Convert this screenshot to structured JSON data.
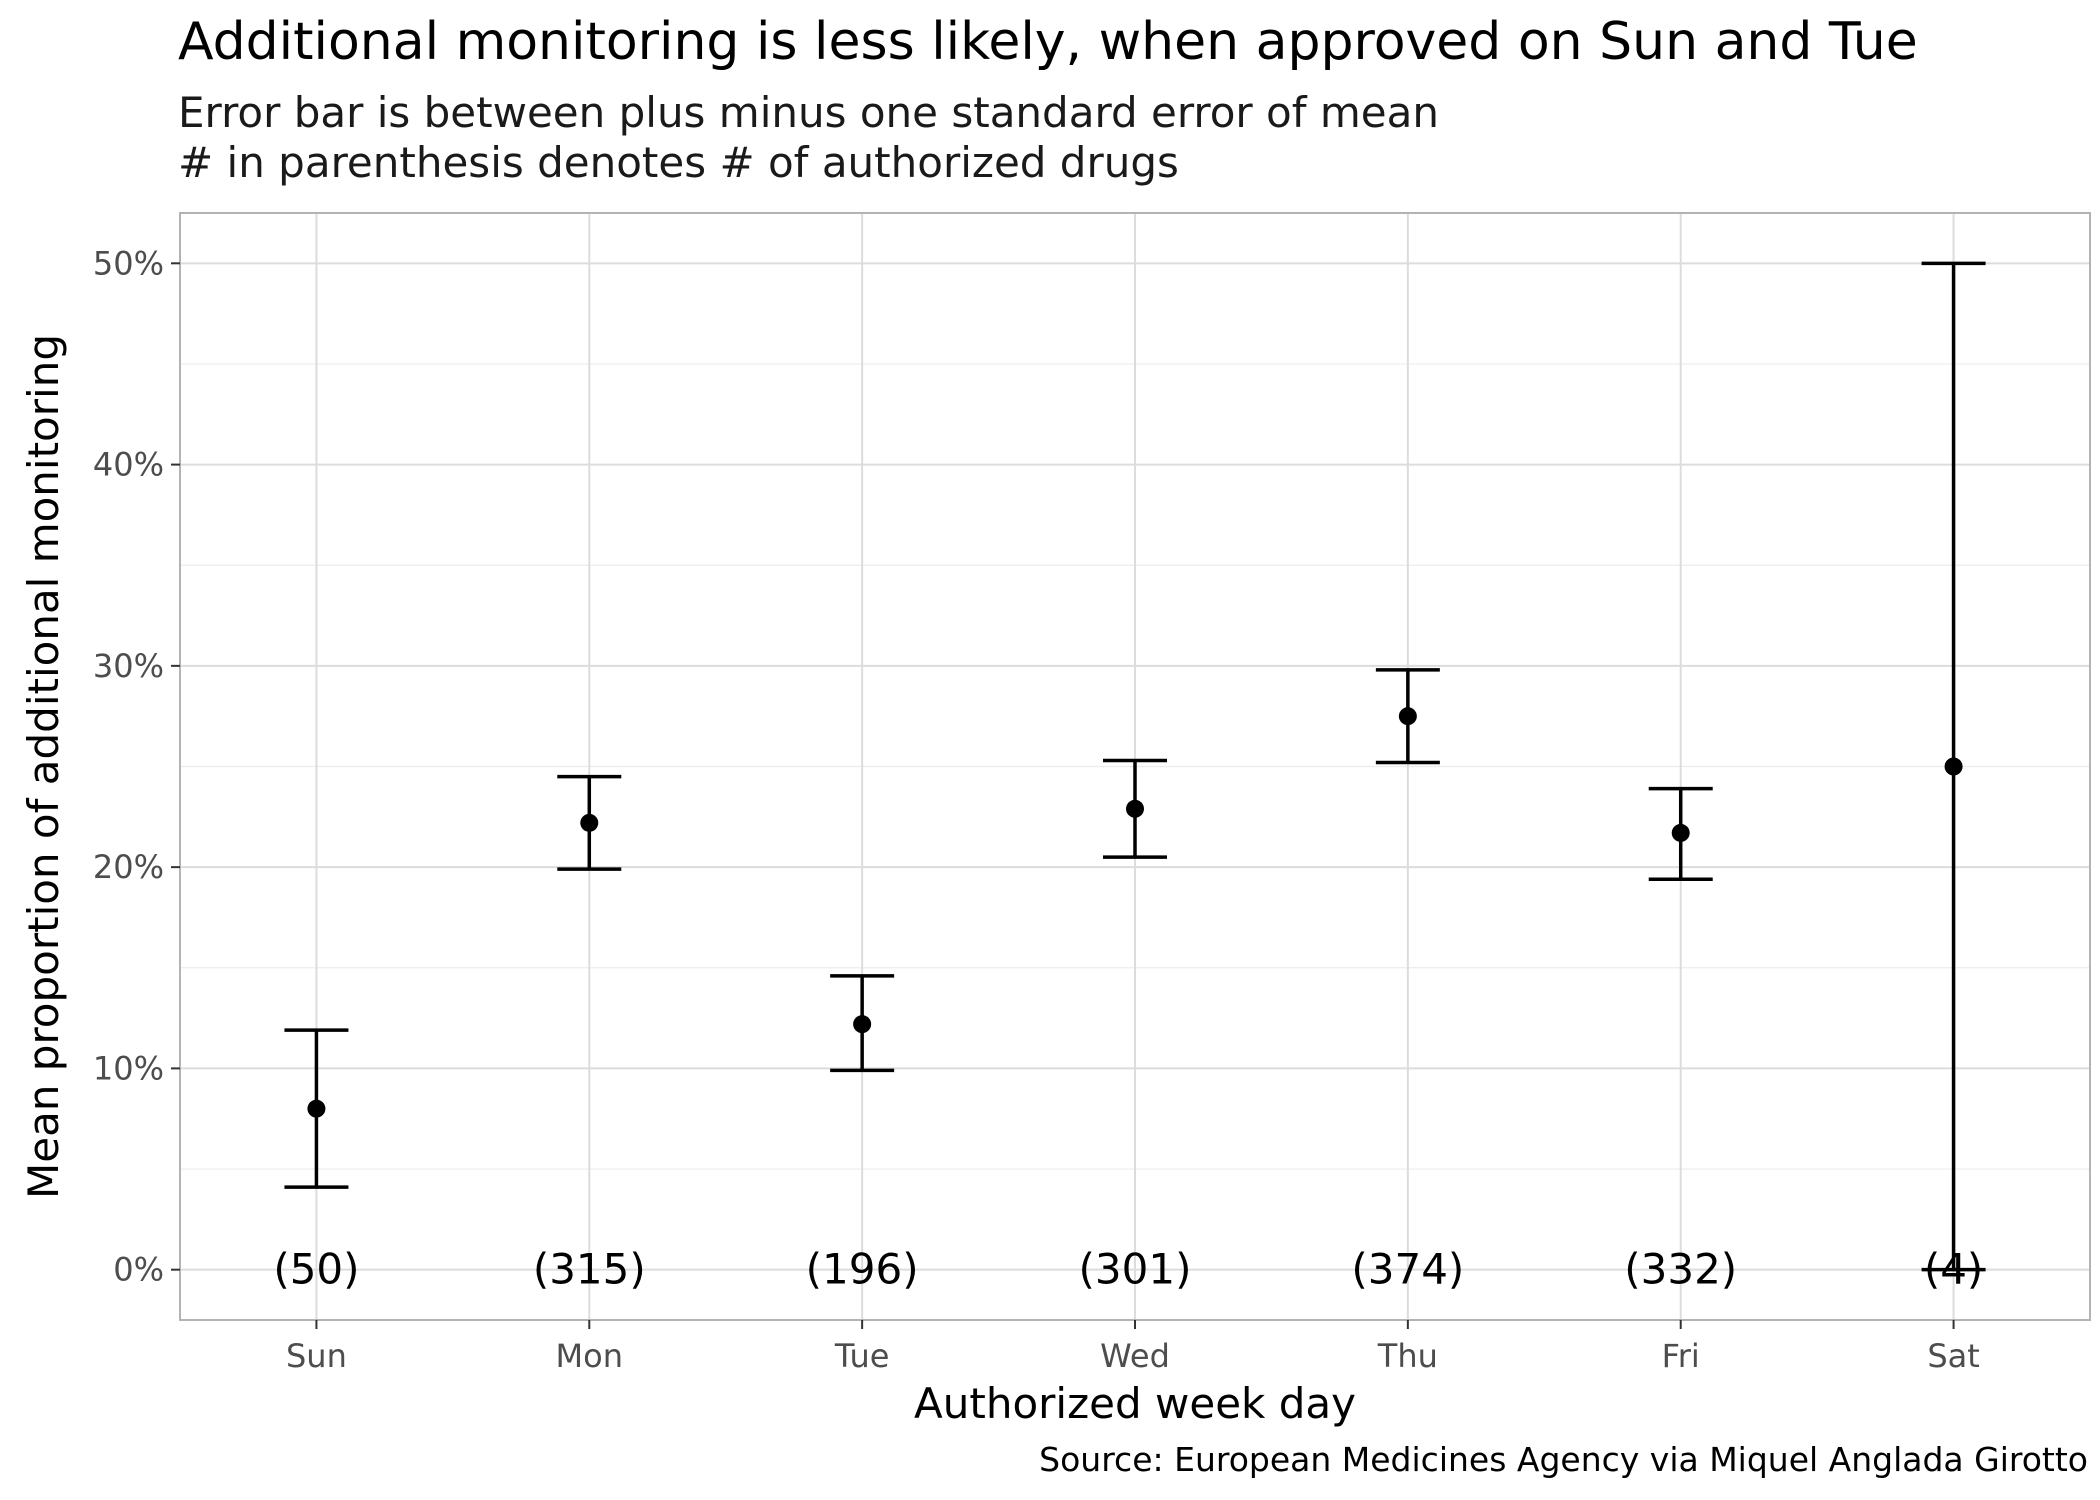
{
  "chart_data": {
    "type": "scatter",
    "title": "Additional monitoring is less likely, when approved on Sun and Tue",
    "subtitle_lines": [
      "Error bar is between plus minus one standard error of mean",
      "# in parenthesis denotes # of authorized drugs"
    ],
    "caption": "Source: European Medicines Agency via Miquel Anglada Girotto",
    "xlabel": "Authorized week day",
    "ylabel": "Mean proportion of additional monitoring",
    "ylim": [
      -0.025,
      0.525
    ],
    "y_ticks": [
      0,
      0.1,
      0.2,
      0.3,
      0.4,
      0.5
    ],
    "y_tick_labels": [
      "0%",
      "10%",
      "20%",
      "30%",
      "40%",
      "50%"
    ],
    "categories": [
      "Sun",
      "Mon",
      "Tue",
      "Wed",
      "Thu",
      "Fri",
      "Sat"
    ],
    "mean": [
      0.08,
      0.222,
      0.122,
      0.229,
      0.275,
      0.217,
      0.25
    ],
    "error_low": [
      0.041,
      0.199,
      0.099,
      0.205,
      0.252,
      0.194,
      0.0
    ],
    "error_high": [
      0.119,
      0.245,
      0.146,
      0.253,
      0.298,
      0.239,
      0.5
    ],
    "count_labels": [
      "(50)",
      "(315)",
      "(196)",
      "(301)",
      "(374)",
      "(332)",
      "(4)"
    ],
    "grid": true
  }
}
